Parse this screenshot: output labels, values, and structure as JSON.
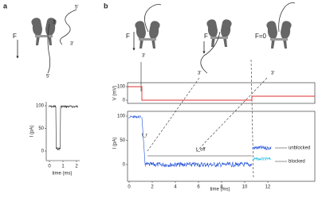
{
  "panel_a": {
    "label": "a",
    "force": "F",
    "strand_top_end": "5'",
    "strand_bottom_end": "3'",
    "inner_end": "3'",
    "exit_end": "5'",
    "plot": {
      "ylabel": "I (pA)",
      "xlabel": "time (ms)",
      "yticks": [
        100,
        50,
        0
      ],
      "xticks": [
        0,
        1,
        2
      ]
    }
  },
  "panel_b": {
    "label": "b",
    "schematics": [
      {
        "force": "F",
        "end": "3'"
      },
      {
        "force": "F",
        "end": "3'"
      },
      {
        "force": "F=0",
        "end": "3'"
      }
    ],
    "voltage_plot": {
      "ylabel": "V (mV)",
      "yticks": [
        100,
        0
      ]
    },
    "current_plot": {
      "ylabel": "I (pA)",
      "xlabel": "time (ms)",
      "yticks": [
        100,
        50,
        0
      ],
      "xticks": [
        0,
        2,
        4,
        6,
        8,
        10,
        12
      ],
      "annotations": [
        "t_r",
        "t_off"
      ],
      "states": [
        "unblocked",
        "blocked"
      ]
    }
  }
}
